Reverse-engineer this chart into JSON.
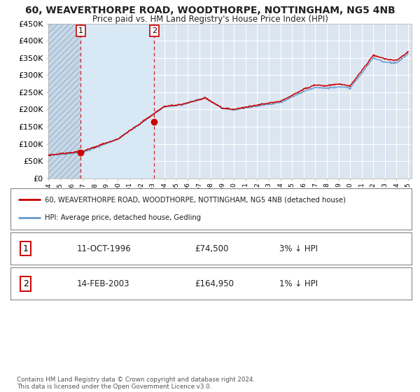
{
  "title": "60, WEAVERTHORPE ROAD, WOODTHORPE, NOTTINGHAM, NG5 4NB",
  "subtitle": "Price paid vs. HM Land Registry's House Price Index (HPI)",
  "legend_line1": "60, WEAVERTHORPE ROAD, WOODTHORPE, NOTTINGHAM, NG5 4NB (detached house)",
  "legend_line2": "HPI: Average price, detached house, Gedling",
  "footer": "Contains HM Land Registry data © Crown copyright and database right 2024.\nThis data is licensed under the Open Government Licence v3.0.",
  "transaction1_year": 1996.79,
  "transaction1_price": 74500,
  "transaction2_year": 2003.12,
  "transaction2_price": 164950,
  "row1_date": "11-OCT-1996",
  "row1_price": "£74,500",
  "row1_pct": "3% ↓ HPI",
  "row2_date": "14-FEB-2003",
  "row2_price": "£164,950",
  "row2_pct": "1% ↓ HPI",
  "ylim": [
    0,
    450000
  ],
  "yticks": [
    0,
    50000,
    100000,
    150000,
    200000,
    250000,
    300000,
    350000,
    400000,
    450000
  ],
  "ytick_labels": [
    "£0",
    "£50K",
    "£100K",
    "£150K",
    "£200K",
    "£250K",
    "£300K",
    "£350K",
    "£400K",
    "£450K"
  ],
  "hpi_color": "#6699cc",
  "price_color": "#cc0000",
  "background_color": "#ffffff",
  "plot_bg_color": "#dce6f1",
  "hatch_color": "#c8d8e8",
  "grid_color": "#ffffff",
  "label_box_color": "#cc0000",
  "xlim_start": 1994,
  "xlim_end": 2025.3
}
